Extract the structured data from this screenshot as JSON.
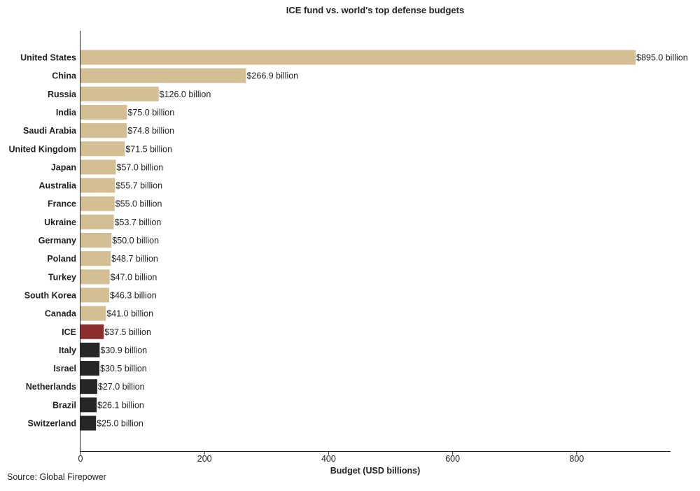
{
  "chart_data": {
    "type": "bar",
    "orientation": "horizontal",
    "title": "ICE fund vs. world's top defense budgets",
    "xlabel": "Budget (USD billions)",
    "ylabel": "",
    "xlim": [
      0,
      950
    ],
    "x_ticks": [
      0,
      200,
      400,
      600,
      800
    ],
    "grid": false,
    "categories": [
      "United States",
      "China",
      "Russia",
      "India",
      "Saudi Arabia",
      "United Kingdom",
      "Japan",
      "Australia",
      "France",
      "Ukraine",
      "Germany",
      "Poland",
      "Turkey",
      "South Korea",
      "Canada",
      "ICE",
      "Italy",
      "Israel",
      "Netherlands",
      "Brazil",
      "Switzerland"
    ],
    "values": [
      895.0,
      266.9,
      126.0,
      75.0,
      74.8,
      71.5,
      57.0,
      55.7,
      55.0,
      53.7,
      50.0,
      48.7,
      47.0,
      46.3,
      41.0,
      37.5,
      30.9,
      30.5,
      27.0,
      26.1,
      25.0
    ],
    "value_labels": [
      "$895.0 billion",
      "$266.9 billion",
      "$126.0 billion",
      "$75.0 billion",
      "$74.8 billion",
      "$71.5 billion",
      "$57.0 billion",
      "$55.7 billion",
      "$55.0 billion",
      "$53.7 billion",
      "$50.0 billion",
      "$48.7 billion",
      "$47.0 billion",
      "$46.3 billion",
      "$41.0 billion",
      "$37.5 billion",
      "$30.9 billion",
      "$30.5 billion",
      "$27.0 billion",
      "$26.1 billion",
      "$25.0 billion"
    ],
    "bar_groups": [
      "above",
      "above",
      "above",
      "above",
      "above",
      "above",
      "above",
      "above",
      "above",
      "above",
      "above",
      "above",
      "above",
      "above",
      "above",
      "ice",
      "below",
      "below",
      "below",
      "below",
      "below"
    ],
    "colors": {
      "above": "#d4be93",
      "ice": "#8b2e2e",
      "below": "#262626"
    },
    "source": "Source: Global Firepower"
  }
}
